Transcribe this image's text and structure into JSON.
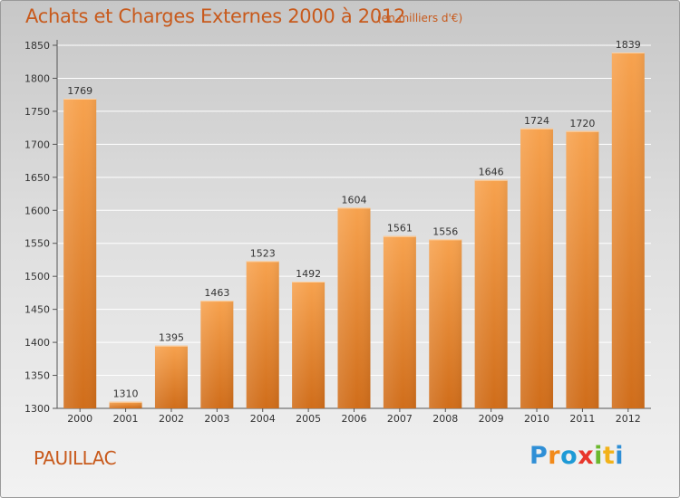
{
  "title": "Achats et Charges Externes 2000 à 2012",
  "subtitle": "(en milliers d'€)",
  "city": "PAUILLAC",
  "logo": {
    "letters": [
      "P",
      "r",
      "o",
      "x",
      "i",
      "t",
      "i"
    ],
    "colors": [
      "#2f8fd6",
      "#f28a1a",
      "#1e9ad6",
      "#e8362b",
      "#6bb82e",
      "#f2b21a",
      "#2f8fd6"
    ]
  },
  "colors": {
    "bar_light": "#f7a24e",
    "bar_dark": "#d06d1a",
    "title": "#c85a1c",
    "grid": "#ffffff"
  },
  "chart_data": {
    "type": "bar",
    "title": "Achats et Charges Externes 2000 à 2012",
    "subtitle": "(en milliers d'€)",
    "categories": [
      "2000",
      "2001",
      "2002",
      "2003",
      "2004",
      "2005",
      "2006",
      "2007",
      "2008",
      "2009",
      "2010",
      "2011",
      "2012"
    ],
    "values": [
      1769,
      1310,
      1395,
      1463,
      1523,
      1492,
      1604,
      1561,
      1556,
      1646,
      1724,
      1720,
      1839
    ],
    "ylim": [
      1300,
      1850
    ],
    "yticks": [
      1300,
      1350,
      1400,
      1450,
      1500,
      1550,
      1600,
      1650,
      1700,
      1750,
      1800,
      1850
    ],
    "grid": true,
    "xlabel": "",
    "ylabel": ""
  }
}
